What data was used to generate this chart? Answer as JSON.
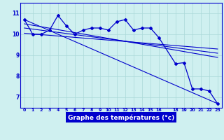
{
  "title": "Graphe des températures (°c)",
  "bg_color": "#cff0f0",
  "grid_color": "#aad8d8",
  "line_color": "#0000cc",
  "xlim": [
    -0.5,
    23.5
  ],
  "ylim": [
    6.5,
    11.5
  ],
  "yticks": [
    7,
    8,
    9,
    10,
    11
  ],
  "xtick_labels": [
    "0",
    "1",
    "2",
    "3",
    "4",
    "5",
    "6",
    "7",
    "8",
    "9",
    "10",
    "11",
    "12",
    "13",
    "14",
    "15",
    "16",
    "",
    "18",
    "19",
    "20",
    "21",
    "22",
    "23"
  ],
  "xtick_positions": [
    0,
    1,
    2,
    3,
    4,
    5,
    6,
    7,
    8,
    9,
    10,
    11,
    12,
    13,
    14,
    15,
    16,
    17,
    18,
    19,
    20,
    21,
    22,
    23
  ],
  "series_main": {
    "x": [
      0,
      1,
      2,
      3,
      4,
      5,
      6,
      7,
      8,
      9,
      10,
      11,
      12,
      13,
      14,
      15,
      16,
      18,
      19,
      20,
      21,
      22,
      23
    ],
    "y": [
      10.7,
      10.0,
      10.0,
      10.2,
      10.9,
      10.4,
      10.0,
      10.2,
      10.3,
      10.3,
      10.2,
      10.6,
      10.7,
      10.2,
      10.3,
      10.3,
      9.85,
      8.6,
      8.65,
      7.4,
      7.4,
      7.3,
      6.7
    ]
  },
  "trend_lines": [
    {
      "x": [
        0,
        23
      ],
      "y": [
        10.7,
        6.7
      ]
    },
    {
      "x": [
        0,
        23
      ],
      "y": [
        10.5,
        8.9
      ]
    },
    {
      "x": [
        0,
        23
      ],
      "y": [
        10.3,
        9.1
      ]
    },
    {
      "x": [
        0,
        23
      ],
      "y": [
        10.05,
        9.3
      ]
    }
  ]
}
